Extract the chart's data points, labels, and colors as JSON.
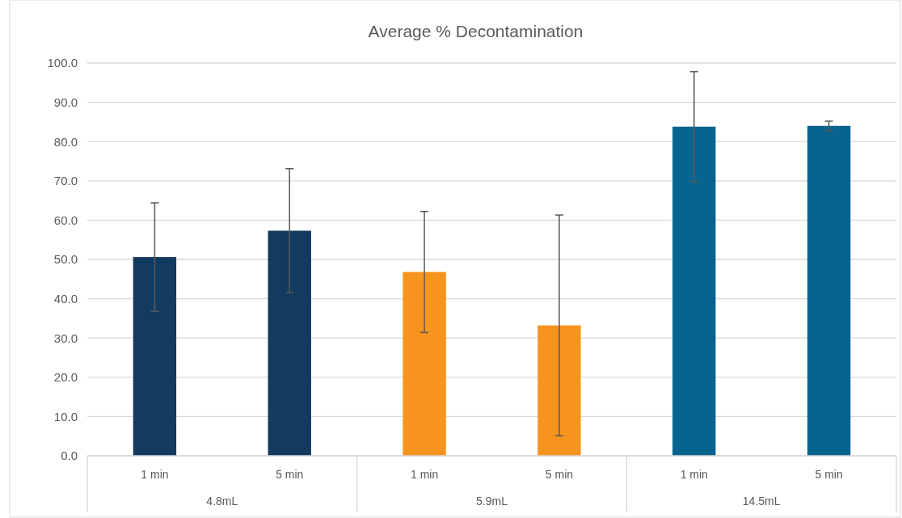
{
  "chart_data": {
    "type": "bar",
    "title": "Average % Decontamination",
    "categories": [
      "1 min",
      "5 min",
      "1 min",
      "5 min",
      "1 min",
      "5 min"
    ],
    "values": [
      50.6,
      57.3,
      46.8,
      33.2,
      83.8,
      84.0
    ],
    "errors": [
      13.8,
      15.8,
      15.4,
      28.1,
      14.0,
      1.2
    ],
    "colors": [
      "#133a60",
      "#133a60",
      "#f7941d",
      "#f7941d",
      "#08648f",
      "#08648f"
    ],
    "ylim": [
      0,
      100
    ],
    "yticks": [
      {
        "value": 0,
        "label": "0.0"
      },
      {
        "value": 10,
        "label": "10.0"
      },
      {
        "value": 20,
        "label": "20.0"
      },
      {
        "value": 30,
        "label": "30.0"
      },
      {
        "value": 40,
        "label": "40.0"
      },
      {
        "value": 50,
        "label": "50.0"
      },
      {
        "value": 60,
        "label": "60.0"
      },
      {
        "value": 70,
        "label": "70.0"
      },
      {
        "value": 80,
        "label": "80.0"
      },
      {
        "value": 90,
        "label": "90.0"
      },
      {
        "value": 100,
        "label": "100.0"
      }
    ],
    "grid": "y",
    "annotations": [
      "4.8mL",
      "5.9mL",
      "14.5mL"
    ]
  }
}
